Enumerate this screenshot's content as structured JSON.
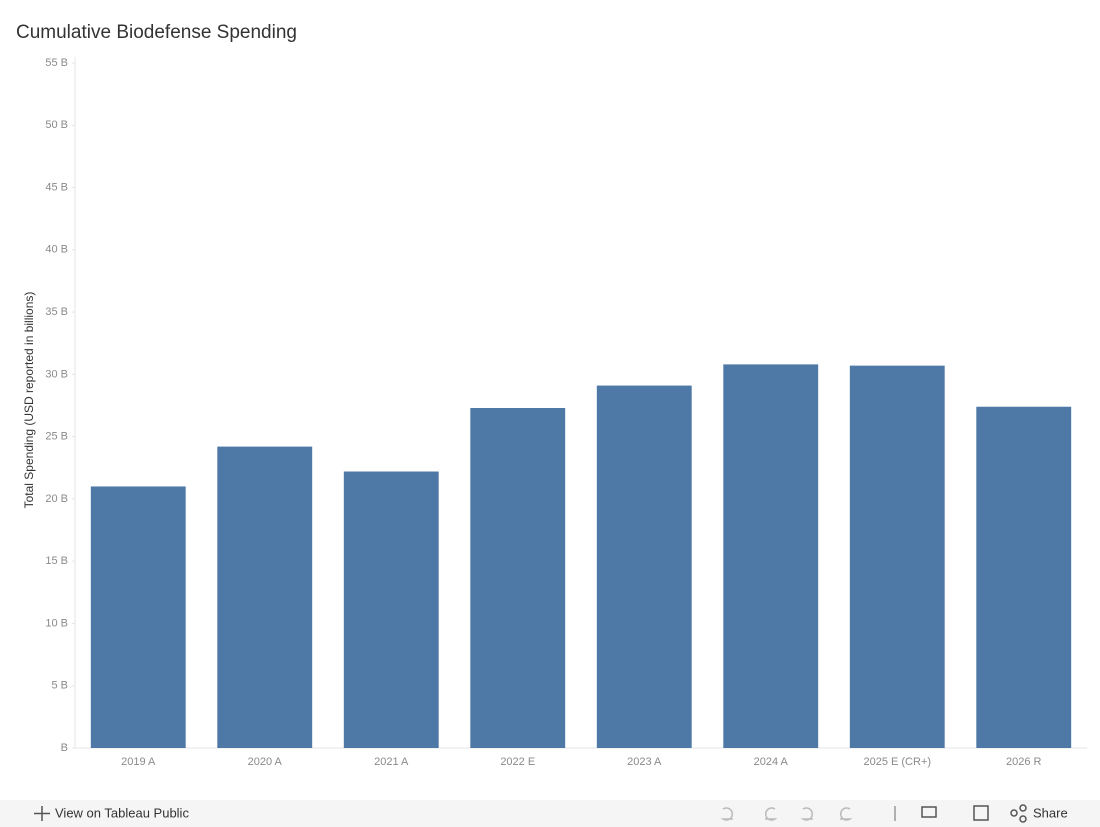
{
  "chart_data": {
    "type": "bar",
    "title": "Cumulative Biodefense Spending",
    "y_label": "Total Spending (USD reported in billions)",
    "categories": [
      "2019 A",
      "2020 A",
      "2021 A",
      "2022 E",
      "2023 A",
      "2024 A",
      "2025 E (CR+)",
      "2026 R"
    ],
    "values": [
      21.0,
      24.2,
      22.2,
      27.3,
      29.1,
      30.8,
      30.7,
      27.4
    ],
    "color": "#4e79a7",
    "ylim": [
      0,
      55
    ],
    "yticks": [
      {
        "value": 0,
        "label": "B"
      },
      {
        "value": 5,
        "label": "5 B"
      },
      {
        "value": 10,
        "label": "10 B"
      },
      {
        "value": 15,
        "label": "15 B"
      },
      {
        "value": 20,
        "label": "20 B"
      },
      {
        "value": 25,
        "label": "25 B"
      },
      {
        "value": 30,
        "label": "30 B"
      },
      {
        "value": 35,
        "label": "35 B"
      },
      {
        "value": 40,
        "label": "40 B"
      },
      {
        "value": 45,
        "label": "45 B"
      },
      {
        "value": 50,
        "label": "50 B"
      },
      {
        "value": 55,
        "label": "55 B"
      }
    ],
    "grid": false
  },
  "toolbar": {
    "view_link": "View on Tableau Public",
    "share": "Share"
  }
}
